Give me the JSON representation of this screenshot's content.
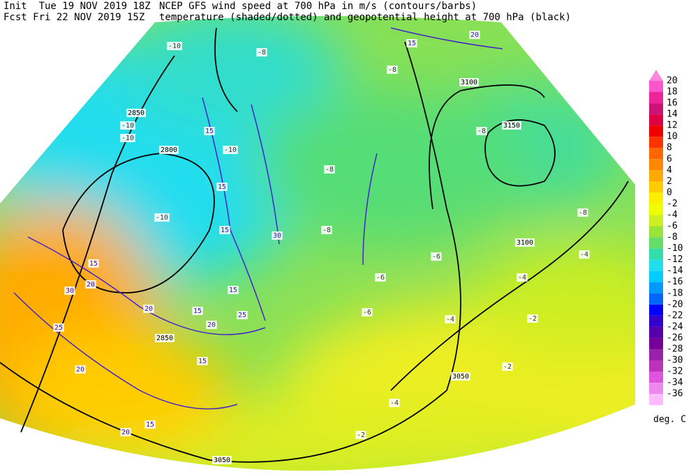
{
  "header": {
    "init": "Init  Tue 19 NOV 2019 18Z",
    "fcst": "Fcst Fri 22 NOV 2019 15Z",
    "title_line1": "NCEP GFS wind speed at 700 hPa in m/s (contours/barbs)",
    "title_line2": "temperature (shaded/dotted) and geopotential height at 700 hPa (black)"
  },
  "colorbar": {
    "unit": "deg. C",
    "levels": [
      {
        "value": 20,
        "color": "#ff55cc"
      },
      {
        "value": 18,
        "color": "#ee2299"
      },
      {
        "value": 16,
        "color": "#cc1177"
      },
      {
        "value": 14,
        "color": "#dd0044"
      },
      {
        "value": 12,
        "color": "#ee0000"
      },
      {
        "value": 10,
        "color": "#ff3300"
      },
      {
        "value": 8,
        "color": "#ff6600"
      },
      {
        "value": 6,
        "color": "#ff8800"
      },
      {
        "value": 4,
        "color": "#ffaa00"
      },
      {
        "value": 2,
        "color": "#ffcc00"
      },
      {
        "value": 0,
        "color": "#ffee00"
      },
      {
        "value": -2,
        "color": "#eeff00"
      },
      {
        "value": -4,
        "color": "#ccee22"
      },
      {
        "value": -6,
        "color": "#99e33a"
      },
      {
        "value": -8,
        "color": "#66dd66"
      },
      {
        "value": -10,
        "color": "#33ddaa"
      },
      {
        "value": -12,
        "color": "#22ddee"
      },
      {
        "value": -14,
        "color": "#00ccff"
      },
      {
        "value": -16,
        "color": "#0099ff"
      },
      {
        "value": -18,
        "color": "#0066ff"
      },
      {
        "value": -20,
        "color": "#0000ff"
      },
      {
        "value": -22,
        "color": "#3300cc"
      },
      {
        "value": -24,
        "color": "#5500aa"
      },
      {
        "value": -26,
        "color": "#770099"
      },
      {
        "value": -28,
        "color": "#9922aa"
      },
      {
        "value": -30,
        "color": "#bb33bb"
      },
      {
        "value": -32,
        "color": "#dd55dd"
      },
      {
        "value": -34,
        "color": "#ee88ee"
      },
      {
        "value": -36,
        "color": "#ffbbff"
      }
    ]
  },
  "map": {
    "height_labels": [
      3100,
      3150,
      2850,
      2800,
      3100,
      3050,
      3050,
      2850
    ],
    "wind_labels": [
      15,
      20,
      15,
      15,
      15,
      30,
      15,
      20,
      20,
      15,
      25,
      20,
      15,
      25,
      20,
      15,
      15,
      20,
      30
    ],
    "temp_labels": [
      -10,
      -8,
      -8,
      -10,
      -10,
      -10,
      -8,
      -8,
      -8,
      -10,
      -8,
      -6,
      -6,
      -4,
      -4,
      -2,
      -6,
      -4,
      -2,
      -4,
      -2
    ]
  }
}
